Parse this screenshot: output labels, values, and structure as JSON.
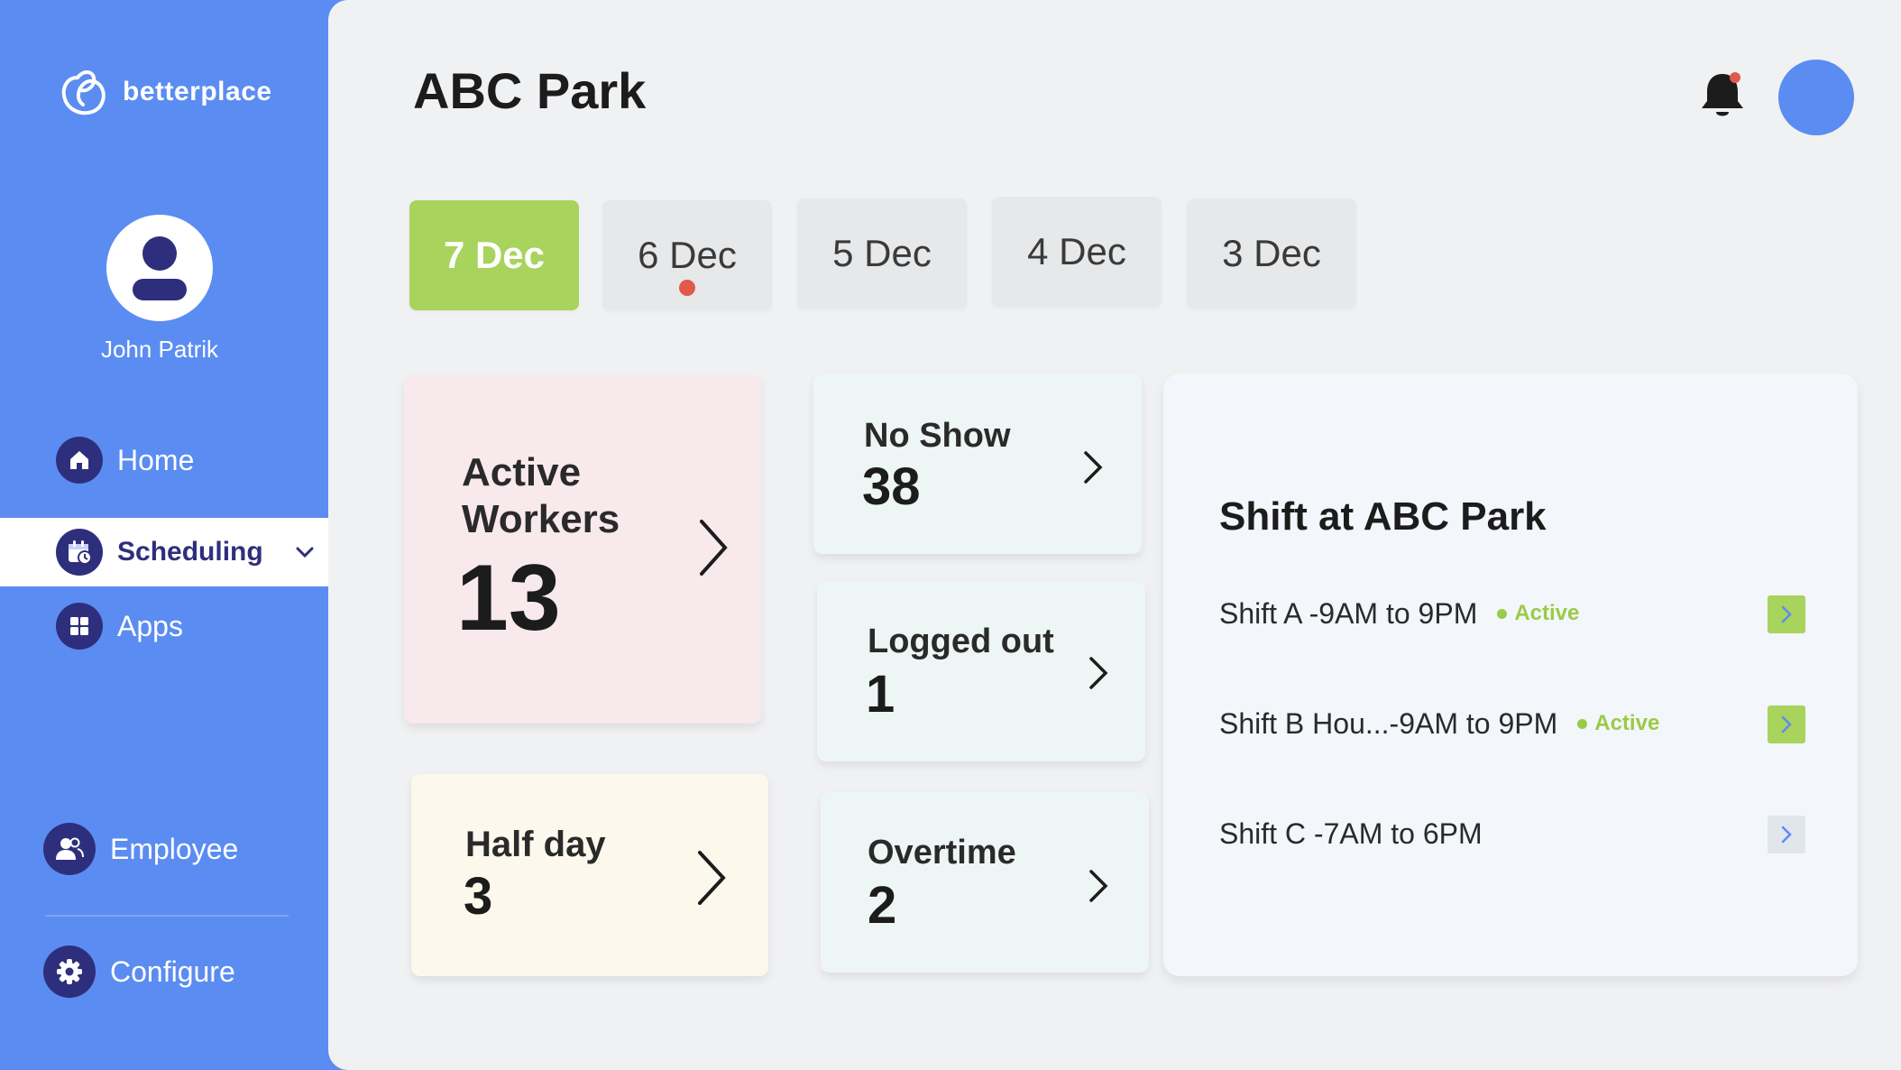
{
  "brand": {
    "name": "betterplace"
  },
  "profile": {
    "name": "John Patrik"
  },
  "nav": {
    "home": "Home",
    "scheduling": "Scheduling",
    "apps": "Apps",
    "employee": "Employee",
    "configure": "Configure"
  },
  "header": {
    "title": "ABC Park"
  },
  "date_tabs": [
    {
      "label": "7 Dec",
      "active": true
    },
    {
      "label": "6 Dec",
      "has_alert": true
    },
    {
      "label": "5 Dec"
    },
    {
      "label": "4 Dec"
    },
    {
      "label": "3 Dec"
    }
  ],
  "cards": {
    "active_workers": {
      "title": "Active Workers",
      "value": "13"
    },
    "half_day": {
      "title": "Half day",
      "value": "3"
    },
    "no_show": {
      "title": "No Show",
      "value": "38"
    },
    "logged_out": {
      "title": "Logged out",
      "value": "1"
    },
    "overtime": {
      "title": "Overtime",
      "value": "2"
    }
  },
  "shifts": {
    "title": "Shift at ABC Park",
    "items": [
      {
        "label": "Shift A -9AM to 9PM",
        "status": "Active"
      },
      {
        "label": "Shift B Hou...-9AM to 9PM",
        "status": "Active"
      },
      {
        "label": "Shift C -7AM to 6PM",
        "status": ""
      }
    ]
  },
  "colors": {
    "sidebar": "#5b8cf2",
    "active_tab": "#a8d35c",
    "status_active": "#9acb46",
    "alert": "#e05a4b",
    "nav_icon_bg": "#2e2f7c"
  },
  "icons": {
    "notifications": "bell-icon",
    "home": "home-icon",
    "scheduling": "calendar-icon",
    "apps": "grid-icon",
    "employee": "people-icon",
    "configure": "gear-icon"
  }
}
